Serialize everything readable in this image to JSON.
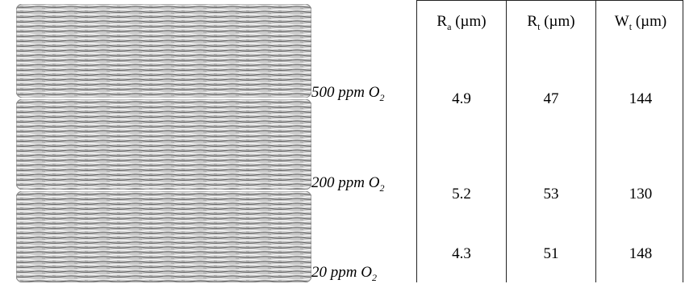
{
  "headers": [
    {
      "symbol": "R",
      "sub": "a",
      "unit": "(µm)"
    },
    {
      "symbol": "R",
      "sub": "t",
      "unit": "(µm)"
    },
    {
      "symbol": "W",
      "sub": "t",
      "unit": "(µm)"
    }
  ],
  "rows": [
    {
      "label": {
        "text": "500 ppm O",
        "sub": "2"
      },
      "values": [
        4.9,
        47,
        144
      ]
    },
    {
      "label": {
        "text": "200 ppm O",
        "sub": "2"
      },
      "values": [
        5.2,
        53,
        130
      ]
    },
    {
      "label": {
        "text": "20 ppm O",
        "sub": "2"
      },
      "values": [
        4.3,
        51,
        148
      ]
    }
  ]
}
